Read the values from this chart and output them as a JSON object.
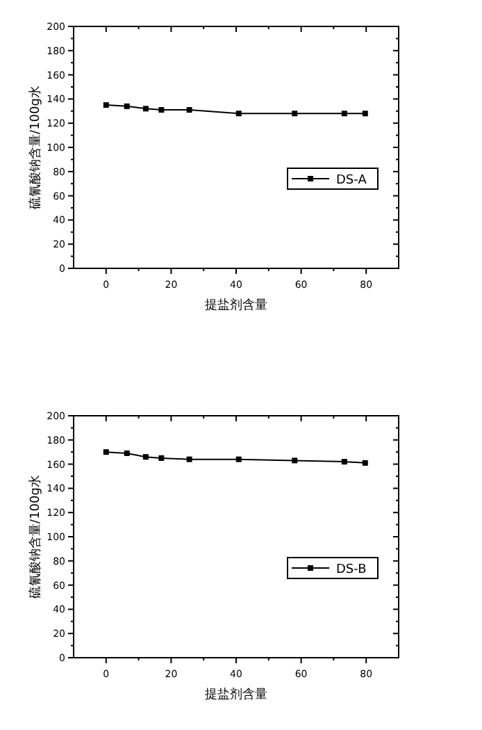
{
  "chart_data": [
    {
      "type": "line",
      "xlabel": "提盐剂含量",
      "ylabel": "硫氰酸钠含量/100g水",
      "x": [
        0,
        6.4,
        12.2,
        17,
        25.6,
        40.8,
        58,
        73.3,
        79.7
      ],
      "series": [
        {
          "name": "DS-A",
          "color": "#000000",
          "values": [
            135,
            134,
            132,
            131,
            131,
            128,
            128,
            128,
            128
          ]
        }
      ],
      "xlim": [
        -10,
        90
      ],
      "xticks": [
        0,
        20,
        40,
        60,
        80
      ],
      "ylim": [
        0,
        200
      ],
      "yticks": [
        0,
        20,
        40,
        60,
        80,
        100,
        120,
        140,
        160,
        180,
        200
      ],
      "marker": "square",
      "line_style": "solid",
      "legend": "right"
    },
    {
      "type": "line",
      "xlabel": "提盐剂含量",
      "ylabel": "硫氰酸钠含量/100g水",
      "x": [
        0,
        6.4,
        12.2,
        17,
        25.6,
        40.8,
        58,
        73.3,
        79.7
      ],
      "series": [
        {
          "name": "DS-B",
          "color": "#000000",
          "values": [
            170,
            169,
            166,
            165,
            164,
            164,
            163,
            162,
            161
          ]
        }
      ],
      "xlim": [
        -10,
        90
      ],
      "xticks": [
        0,
        20,
        40,
        60,
        80
      ],
      "ylim": [
        0,
        200
      ],
      "yticks": [
        0,
        20,
        40,
        60,
        80,
        100,
        120,
        140,
        160,
        180,
        200
      ],
      "marker": "square",
      "line_style": "solid",
      "legend": "right"
    }
  ]
}
